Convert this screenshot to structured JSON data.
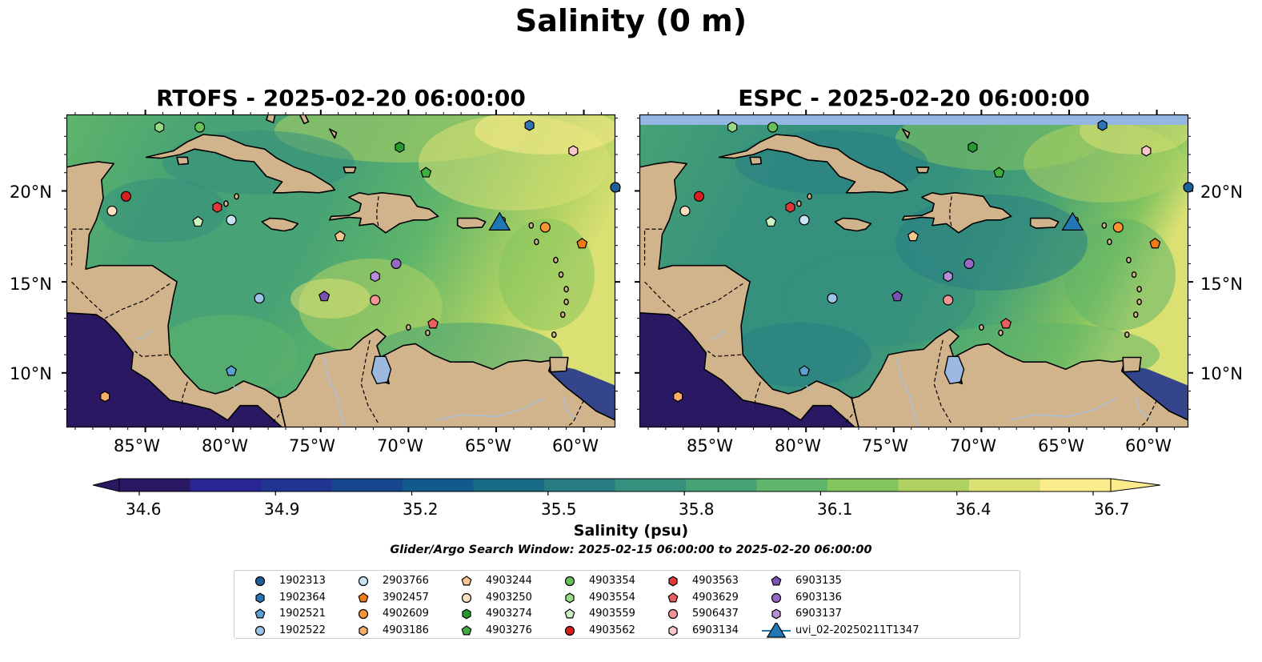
{
  "figure": {
    "title": "Salinity (0 m)",
    "panels": [
      {
        "title": "RTOFS - 2025-02-20 06:00:00",
        "ocean_variant": "rtofs"
      },
      {
        "title": "ESPC - 2025-02-20 06:00:00",
        "ocean_variant": "espc"
      }
    ],
    "longitude_ticks": [
      "85°W",
      "80°W",
      "75°W",
      "70°W",
      "65°W",
      "60°W"
    ],
    "latitude_ticks": [
      "20°N",
      "15°N",
      "10°N"
    ],
    "colorbar": {
      "label": "Salinity (psu)",
      "ticks": [
        "34.6",
        "34.9",
        "35.2",
        "35.5",
        "35.8",
        "36.1",
        "36.4",
        "36.7"
      ],
      "colormap": "haline",
      "colors": [
        "#2a1863",
        "#2a2595",
        "#21348f",
        "#15468f",
        "#125a8b",
        "#196c86",
        "#287d83",
        "#35907d",
        "#47a275",
        "#5fb56a",
        "#84c45f",
        "#b0d262",
        "#dbe072",
        "#fceb8a"
      ]
    },
    "search_window": "Glider/Argo Search Window: 2025-02-15 06:00:00 to 2025-02-20 06:00:00"
  },
  "legend": {
    "entries": [
      {
        "label": "1902313",
        "marker": "circle",
        "color": "#1f5f99"
      },
      {
        "label": "1902364",
        "marker": "hexagon",
        "color": "#2b75b4"
      },
      {
        "label": "1902521",
        "marker": "pentagon",
        "color": "#5e9fd2"
      },
      {
        "label": "1902522",
        "marker": "circle",
        "color": "#9bc4e8"
      },
      {
        "label": "2903766",
        "marker": "circle",
        "color": "#c8e2f6"
      },
      {
        "label": "3902457",
        "marker": "pentagon",
        "color": "#f07b12"
      },
      {
        "label": "4902609",
        "marker": "circle",
        "color": "#f59436"
      },
      {
        "label": "4903186",
        "marker": "hexagon",
        "color": "#f9ae68"
      },
      {
        "label": "4903244",
        "marker": "pentagon",
        "color": "#f7c790"
      },
      {
        "label": "4903250",
        "marker": "circle",
        "color": "#fde0c0"
      },
      {
        "label": "4903274",
        "marker": "hexagon",
        "color": "#239b2f"
      },
      {
        "label": "4903276",
        "marker": "pentagon",
        "color": "#3fae3d"
      },
      {
        "label": "4903354",
        "marker": "circle",
        "color": "#65c158"
      },
      {
        "label": "4903554",
        "marker": "hexagon",
        "color": "#98d986"
      },
      {
        "label": "4903559",
        "marker": "pentagon",
        "color": "#cff2c2"
      },
      {
        "label": "4903562",
        "marker": "circle",
        "color": "#d62020"
      },
      {
        "label": "4903563",
        "marker": "hexagon",
        "color": "#e03838"
      },
      {
        "label": "4903629",
        "marker": "pentagon",
        "color": "#ea6060"
      },
      {
        "label": "5906437",
        "marker": "circle",
        "color": "#f19595"
      },
      {
        "label": "6903134",
        "marker": "hexagon",
        "color": "#fbc6cc"
      },
      {
        "label": "6903135",
        "marker": "pentagon",
        "color": "#7952b3"
      },
      {
        "label": "6903136",
        "marker": "circle",
        "color": "#9469c4"
      },
      {
        "label": "6903137",
        "marker": "hexagon",
        "color": "#b88fd6"
      },
      {
        "label": "uvi_02-20250211T1347",
        "marker": "triangle",
        "color": "#1f77b4"
      }
    ]
  },
  "floats": [
    {
      "id": "1902313",
      "lon": -58.2,
      "lat": 20.2
    },
    {
      "id": "1902364",
      "lon": -63.1,
      "lat": 23.6
    },
    {
      "id": "1902521",
      "lon": -80.1,
      "lat": 10.1
    },
    {
      "id": "1902522",
      "lon": -78.5,
      "lat": 14.1
    },
    {
      "id": "2903766",
      "lon": -80.1,
      "lat": 18.4
    },
    {
      "id": "3902457",
      "lon": -60.1,
      "lat": 17.1
    },
    {
      "id": "4902609",
      "lon": -62.2,
      "lat": 18.0
    },
    {
      "id": "4903186",
      "lon": -87.3,
      "lat": 8.7
    },
    {
      "id": "4903244",
      "lon": -73.9,
      "lat": 17.5
    },
    {
      "id": "4903250",
      "lon": -86.9,
      "lat": 18.9
    },
    {
      "id": "4903274",
      "lon": -70.5,
      "lat": 22.4
    },
    {
      "id": "4903276",
      "lon": -69.0,
      "lat": 21.0
    },
    {
      "id": "4903354",
      "lon": -81.9,
      "lat": 23.5
    },
    {
      "id": "4903554",
      "lon": -84.2,
      "lat": 23.5
    },
    {
      "id": "4903559",
      "lon": -82.0,
      "lat": 18.3
    },
    {
      "id": "4903562",
      "lon": -86.1,
      "lat": 19.7
    },
    {
      "id": "4903563",
      "lon": -80.9,
      "lat": 19.1
    },
    {
      "id": "4903629",
      "lon": -68.6,
      "lat": 12.7
    },
    {
      "id": "5906437",
      "lon": -71.9,
      "lat": 14.0
    },
    {
      "id": "6903134",
      "lon": -60.6,
      "lat": 22.2
    },
    {
      "id": "6903135",
      "lon": -74.8,
      "lat": 14.2
    },
    {
      "id": "6903136",
      "lon": -70.7,
      "lat": 16.0
    },
    {
      "id": "6903137",
      "lon": -71.9,
      "lat": 15.3
    },
    {
      "id": "uvi_02-20250211T1347",
      "lon": -64.8,
      "lat": 18.2
    }
  ],
  "map_extent": {
    "lon_min": -89.5,
    "lon_max": -58.2,
    "lat_min": 7.0,
    "lat_max": 24.2
  }
}
